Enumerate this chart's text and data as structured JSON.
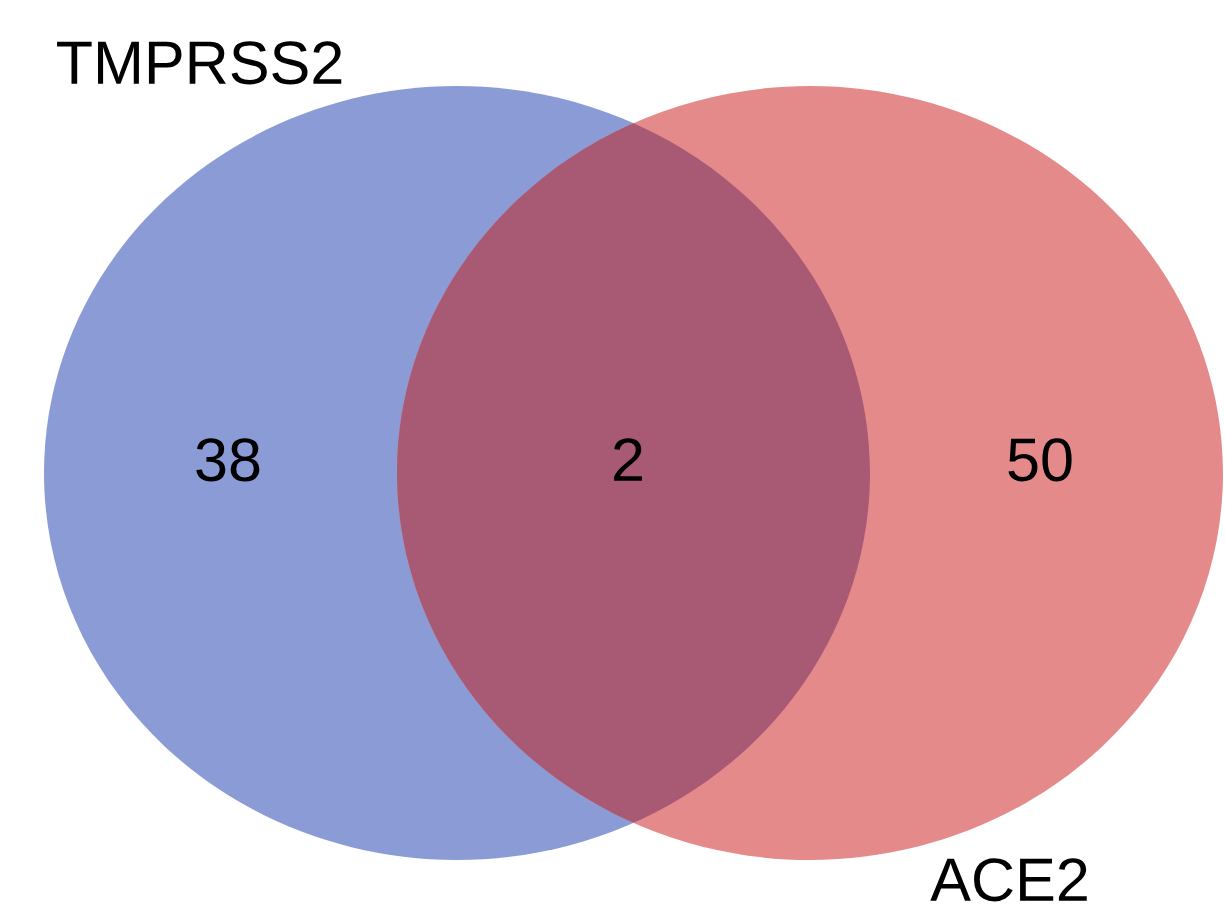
{
  "chart_data": {
    "type": "other",
    "categories": [
      null,
      null,
      null
    ],
    "values": [
      38,
      2,
      50
    ],
    "colors": [
      "#8a9bd6",
      "#a85974",
      "#e58a8a"
    ],
    "annotations": [
      "TMPRSS2",
      "ACE2"
    ],
    "data_labels": true
  }
}
